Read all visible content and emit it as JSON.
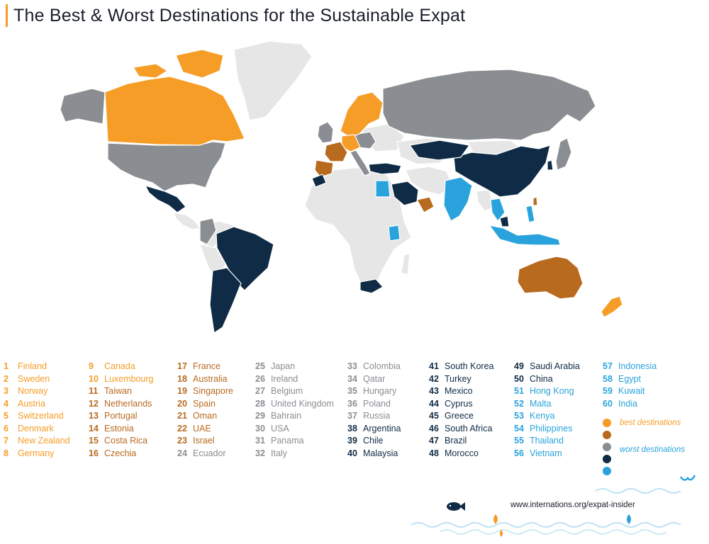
{
  "title": "The Best & Worst Destinations for the Sustainable Expat",
  "colors": {
    "best1": "#f59d27",
    "best2": "#b86a1f",
    "mid": "#8a8d92",
    "worst2": "#0f2b45",
    "worst1": "#2aa3dc",
    "unranked": "#e6e6e6"
  },
  "rankings": {
    "columns": [
      [
        {
          "rank": "1",
          "name": "Finland",
          "group": "best1"
        },
        {
          "rank": "2",
          "name": "Sweden",
          "group": "best1"
        },
        {
          "rank": "3",
          "name": "Norway",
          "group": "best1"
        },
        {
          "rank": "4",
          "name": "Austria",
          "group": "best1"
        },
        {
          "rank": "5",
          "name": "Switzerland",
          "group": "best1"
        },
        {
          "rank": "6",
          "name": "Denmark",
          "group": "best1"
        },
        {
          "rank": "7",
          "name": "New Zealand",
          "group": "best1"
        },
        {
          "rank": "8",
          "name": "Germany",
          "group": "best1"
        }
      ],
      [
        {
          "rank": "9",
          "name": "Canada",
          "group": "best1"
        },
        {
          "rank": "10",
          "name": "Luxembourg",
          "group": "best1"
        },
        {
          "rank": "11",
          "name": "Taiwan",
          "group": "best2"
        },
        {
          "rank": "12",
          "name": "Netherlands",
          "group": "best2"
        },
        {
          "rank": "13",
          "name": "Portugal",
          "group": "best2"
        },
        {
          "rank": "14",
          "name": "Estonia",
          "group": "best2"
        },
        {
          "rank": "15",
          "name": "Costa Rica",
          "group": "best2"
        },
        {
          "rank": "16",
          "name": "Czechia",
          "group": "best2"
        }
      ],
      [
        {
          "rank": "17",
          "name": "France",
          "group": "best2"
        },
        {
          "rank": "18",
          "name": "Australia",
          "group": "best2"
        },
        {
          "rank": "19",
          "name": "Singapore",
          "group": "best2"
        },
        {
          "rank": "20",
          "name": "Spain",
          "group": "best2"
        },
        {
          "rank": "21",
          "name": "Oman",
          "group": "best2"
        },
        {
          "rank": "22",
          "name": "UAE",
          "group": "best2"
        },
        {
          "rank": "23",
          "name": "Israel",
          "group": "best2"
        },
        {
          "rank": "24",
          "name": "Ecuador",
          "group": "mid"
        }
      ],
      [
        {
          "rank": "25",
          "name": "Japan",
          "group": "mid"
        },
        {
          "rank": "26",
          "name": "Ireland",
          "group": "mid"
        },
        {
          "rank": "27",
          "name": "Belgium",
          "group": "mid"
        },
        {
          "rank": "28",
          "name": "United Kingdom",
          "group": "mid"
        },
        {
          "rank": "29",
          "name": "Bahrain",
          "group": "mid"
        },
        {
          "rank": "30",
          "name": "USA",
          "group": "mid"
        },
        {
          "rank": "31",
          "name": "Panama",
          "group": "mid"
        },
        {
          "rank": "32",
          "name": "Italy",
          "group": "mid"
        }
      ],
      [
        {
          "rank": "33",
          "name": "Colombia",
          "group": "mid"
        },
        {
          "rank": "34",
          "name": "Qatar",
          "group": "mid"
        },
        {
          "rank": "35",
          "name": "Hungary",
          "group": "mid"
        },
        {
          "rank": "36",
          "name": "Poland",
          "group": "mid"
        },
        {
          "rank": "37",
          "name": "Russia",
          "group": "mid"
        },
        {
          "rank": "38",
          "name": "Argentina",
          "group": "worst2"
        },
        {
          "rank": "39",
          "name": "Chile",
          "group": "worst2"
        },
        {
          "rank": "40",
          "name": "Malaysia",
          "group": "worst2"
        }
      ],
      [
        {
          "rank": "41",
          "name": "South Korea",
          "group": "worst2"
        },
        {
          "rank": "42",
          "name": "Turkey",
          "group": "worst2"
        },
        {
          "rank": "43",
          "name": "Mexico",
          "group": "worst2"
        },
        {
          "rank": "44",
          "name": "Cyprus",
          "group": "worst2"
        },
        {
          "rank": "45",
          "name": "Greece",
          "group": "worst2"
        },
        {
          "rank": "46",
          "name": "South Africa",
          "group": "worst2"
        },
        {
          "rank": "47",
          "name": "Brazil",
          "group": "worst2"
        },
        {
          "rank": "48",
          "name": "Morocco",
          "group": "worst2"
        }
      ],
      [
        {
          "rank": "49",
          "name": "Saudi Arabia",
          "group": "worst2"
        },
        {
          "rank": "50",
          "name": "China",
          "group": "worst2"
        },
        {
          "rank": "51",
          "name": "Hong Kong",
          "group": "worst1"
        },
        {
          "rank": "52",
          "name": "Malta",
          "group": "worst1"
        },
        {
          "rank": "53",
          "name": "Kenya",
          "group": "worst1"
        },
        {
          "rank": "54",
          "name": "Philippines",
          "group": "worst1"
        },
        {
          "rank": "55",
          "name": "Thailand",
          "group": "worst1"
        },
        {
          "rank": "56",
          "name": "Vietnam",
          "group": "worst1"
        }
      ],
      [
        {
          "rank": "57",
          "name": "Indonesia",
          "group": "worst1"
        },
        {
          "rank": "58",
          "name": "Egypt",
          "group": "worst1"
        },
        {
          "rank": "59",
          "name": "Kuwait",
          "group": "worst1"
        },
        {
          "rank": "60",
          "name": "India",
          "group": "worst1"
        }
      ]
    ]
  },
  "legend": {
    "best_label": "best destinations",
    "worst_label": "worst destinations"
  },
  "footer": {
    "website": "www.internations.org/expat-insider"
  }
}
